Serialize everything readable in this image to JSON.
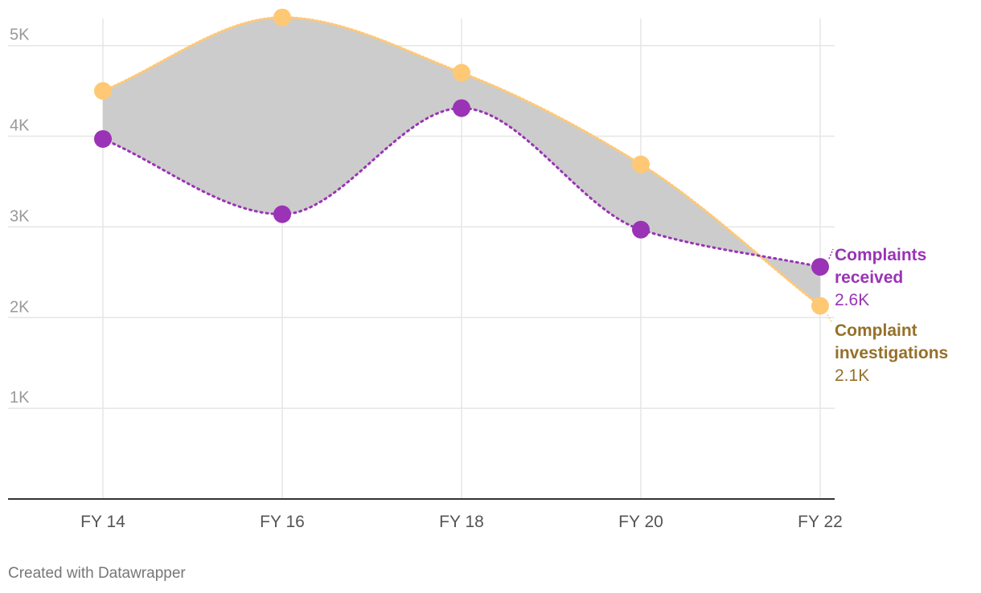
{
  "chart_data": {
    "type": "area",
    "title": "",
    "xlabel": "",
    "ylabel": "",
    "categories": [
      "FY 14",
      "FY 16",
      "FY 18",
      "FY 20",
      "FY 22"
    ],
    "x_tick_labels": [
      "FY 14",
      "FY 16",
      "FY 18",
      "FY 20",
      "FY 22"
    ],
    "y_tick_labels": [
      "1K",
      "2K",
      "3K",
      "4K",
      "5K"
    ],
    "y_ticks": [
      1000,
      2000,
      3000,
      4000,
      5000
    ],
    "ylim": [
      0,
      5300
    ],
    "grid": true,
    "band_color": "#cccccc",
    "series": [
      {
        "name": "Complaints received",
        "label_line1": "Complaints",
        "label_line2": "received",
        "value_label": "2.6K",
        "color": "#9a33b6",
        "values": [
          3970,
          3140,
          4310,
          2970,
          2560
        ]
      },
      {
        "name": "Complaint investigations",
        "label_line1": "Complaint",
        "label_line2": "investigations",
        "value_label": "2.1K",
        "color": "#ffc875",
        "label_color": "#95702a",
        "values": [
          4500,
          5310,
          4700,
          3690,
          2130
        ]
      }
    ]
  },
  "credit": "Created with Datawrapper"
}
